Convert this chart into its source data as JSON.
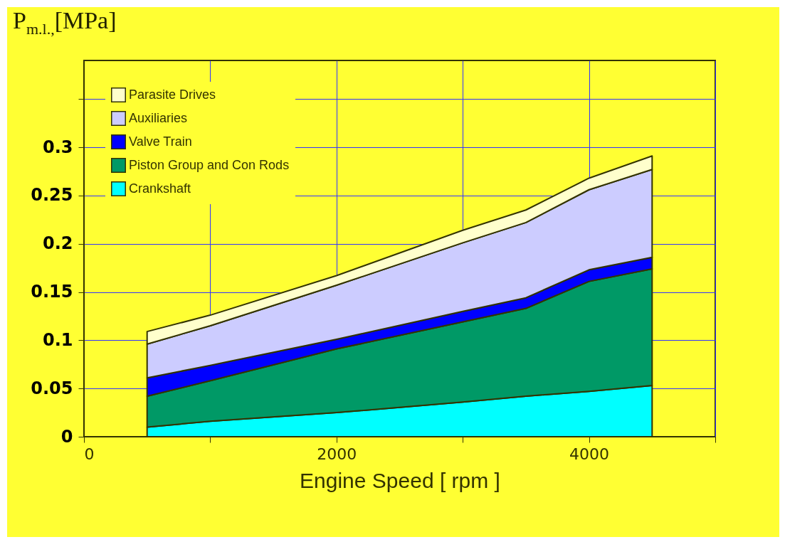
{
  "chart_data": {
    "type": "area",
    "stacked": true,
    "ylabel": "P$_{m.l.,}$[MPa]",
    "xlabel": "Engine Speed  [ rpm ]",
    "x": [
      500,
      1000,
      2000,
      3000,
      3500,
      4000,
      4500
    ],
    "series": [
      {
        "name": "Crankshaft",
        "color": "#00ffff",
        "values": [
          0.01,
          0.016,
          0.025,
          0.036,
          0.042,
          0.047,
          0.053
        ]
      },
      {
        "name": "Piston Group and Con Rods",
        "color": "#009966",
        "values": [
          0.032,
          0.042,
          0.066,
          0.083,
          0.091,
          0.114,
          0.121
        ]
      },
      {
        "name": "Valve Train",
        "color": "#0000ff",
        "values": [
          0.019,
          0.016,
          0.01,
          0.011,
          0.011,
          0.012,
          0.012
        ]
      },
      {
        "name": "Auxiliaries",
        "color": "#ccccff",
        "values": [
          0.035,
          0.041,
          0.056,
          0.071,
          0.078,
          0.083,
          0.091
        ]
      },
      {
        "name": "Parasite Drives",
        "color": "#ffffcc",
        "values": [
          0.013,
          0.011,
          0.01,
          0.013,
          0.013,
          0.012,
          0.014
        ]
      }
    ],
    "xlim": [
      0,
      5000
    ],
    "xticks": [
      0,
      {
        "value": 1000,
        "label": null
      },
      2000,
      {
        "value": 3000,
        "label": null
      },
      4000,
      {
        "value": 5000,
        "label": null
      }
    ],
    "ylim": [
      0,
      0.39
    ],
    "yticks": [
      0,
      0.05,
      0.1,
      0.15,
      0.2,
      0.25,
      0.3,
      {
        "value": 0.35,
        "label": null
      }
    ],
    "grid": true,
    "legend": "top left"
  }
}
